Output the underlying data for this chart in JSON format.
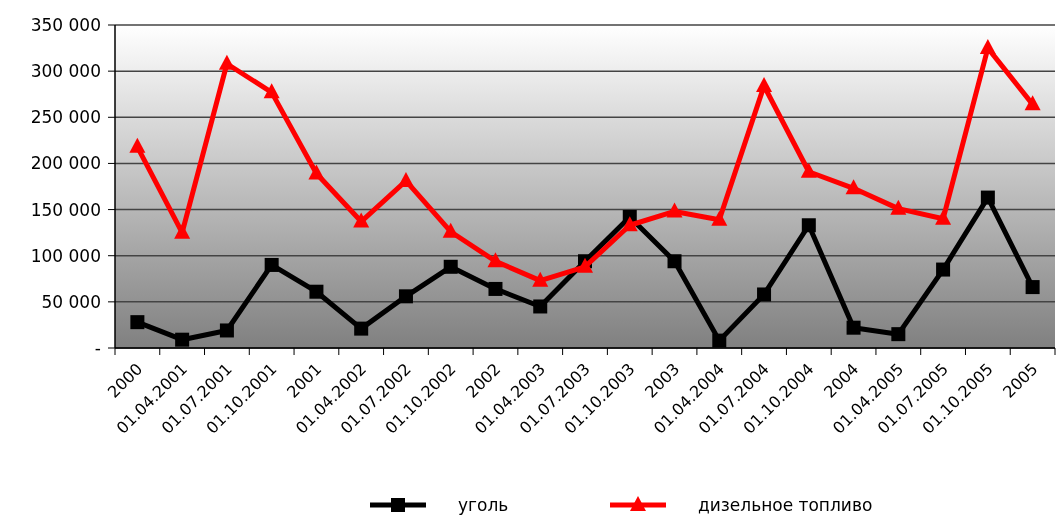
{
  "chart_data": {
    "type": "line",
    "categories": [
      "2000",
      "01.04.2001",
      "01.07.2001",
      "01.10.2001",
      "2001",
      "01.04.2002",
      "01.07.2002",
      "01.10.2002",
      "2002",
      "01.04.2003",
      "01.07.2003",
      "01.10.2003",
      "2003",
      "01.04.2004",
      "01.07.2004",
      "01.10.2004",
      "2004",
      "01.04.2005",
      "01.07.2005",
      "01.10.2005",
      "2005"
    ],
    "series": [
      {
        "name": "уголь",
        "color": "#000000",
        "marker": "square",
        "values": [
          28000,
          9000,
          19000,
          90000,
          61000,
          21000,
          56000,
          88000,
          64000,
          45000,
          94000,
          142000,
          94000,
          8000,
          58000,
          133000,
          22000,
          15000,
          85000,
          163000,
          66000
        ]
      },
      {
        "name": "дизельное топливо",
        "color": "#ff0000",
        "marker": "triangle",
        "values": [
          218000,
          125000,
          308000,
          277000,
          189000,
          137000,
          181000,
          126000,
          94000,
          73000,
          88000,
          133000,
          148000,
          139000,
          284000,
          191000,
          173000,
          151000,
          140000,
          325000,
          264000
        ]
      }
    ],
    "ylim": [
      0,
      350000
    ],
    "yticks": [
      {
        "value": 0,
        "label": "-"
      },
      {
        "value": 50000,
        "label": "50 000"
      },
      {
        "value": 100000,
        "label": "100 000"
      },
      {
        "value": 150000,
        "label": "150 000"
      },
      {
        "value": 200000,
        "label": "200 000"
      },
      {
        "value": 250000,
        "label": "250 000"
      },
      {
        "value": 300000,
        "label": "300 000"
      },
      {
        "value": 350000,
        "label": "350 000"
      }
    ],
    "grid": "y",
    "legend": "bottom",
    "line_style": "solid"
  }
}
